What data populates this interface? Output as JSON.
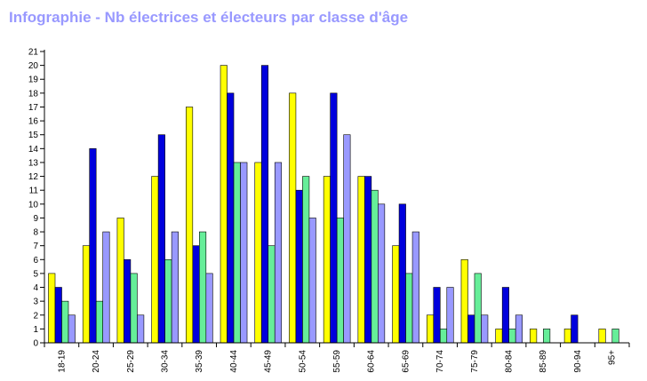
{
  "title": "Infographie - Nb électrices et électeurs par classe d'âge",
  "chart_data": {
    "type": "bar",
    "title": "Infographie - Nb électrices et électeurs par classe d'âge",
    "xlabel": "",
    "ylabel": "",
    "ylim": [
      0,
      21
    ],
    "yticks": [
      0,
      1,
      2,
      3,
      4,
      5,
      6,
      7,
      8,
      9,
      10,
      11,
      12,
      13,
      14,
      15,
      16,
      17,
      18,
      19,
      20,
      21
    ],
    "grid": false,
    "legend": "none",
    "categories": [
      "18-19",
      "20-24",
      "25-29",
      "30-34",
      "35-39",
      "40-44",
      "45-49",
      "50-54",
      "55-59",
      "60-64",
      "65-69",
      "70-74",
      "75-79",
      "80-84",
      "85-89",
      "90-94",
      "95+"
    ],
    "series": [
      {
        "color": "#ffff00",
        "values": [
          5,
          7,
          9,
          12,
          17,
          20,
          13,
          18,
          12,
          12,
          7,
          2,
          6,
          1,
          1,
          1,
          1
        ]
      },
      {
        "color": "#0000dd",
        "values": [
          4,
          14,
          6,
          15,
          7,
          18,
          20,
          11,
          18,
          12,
          10,
          4,
          2,
          4,
          0,
          2,
          0
        ]
      },
      {
        "color": "#66ee99",
        "values": [
          3,
          3,
          5,
          6,
          8,
          13,
          7,
          12,
          9,
          11,
          5,
          1,
          5,
          1,
          1,
          0,
          1
        ]
      },
      {
        "color": "#9999ff",
        "values": [
          2,
          8,
          2,
          8,
          5,
          13,
          13,
          9,
          15,
          10,
          8,
          4,
          2,
          2,
          0,
          0,
          0
        ]
      }
    ]
  }
}
